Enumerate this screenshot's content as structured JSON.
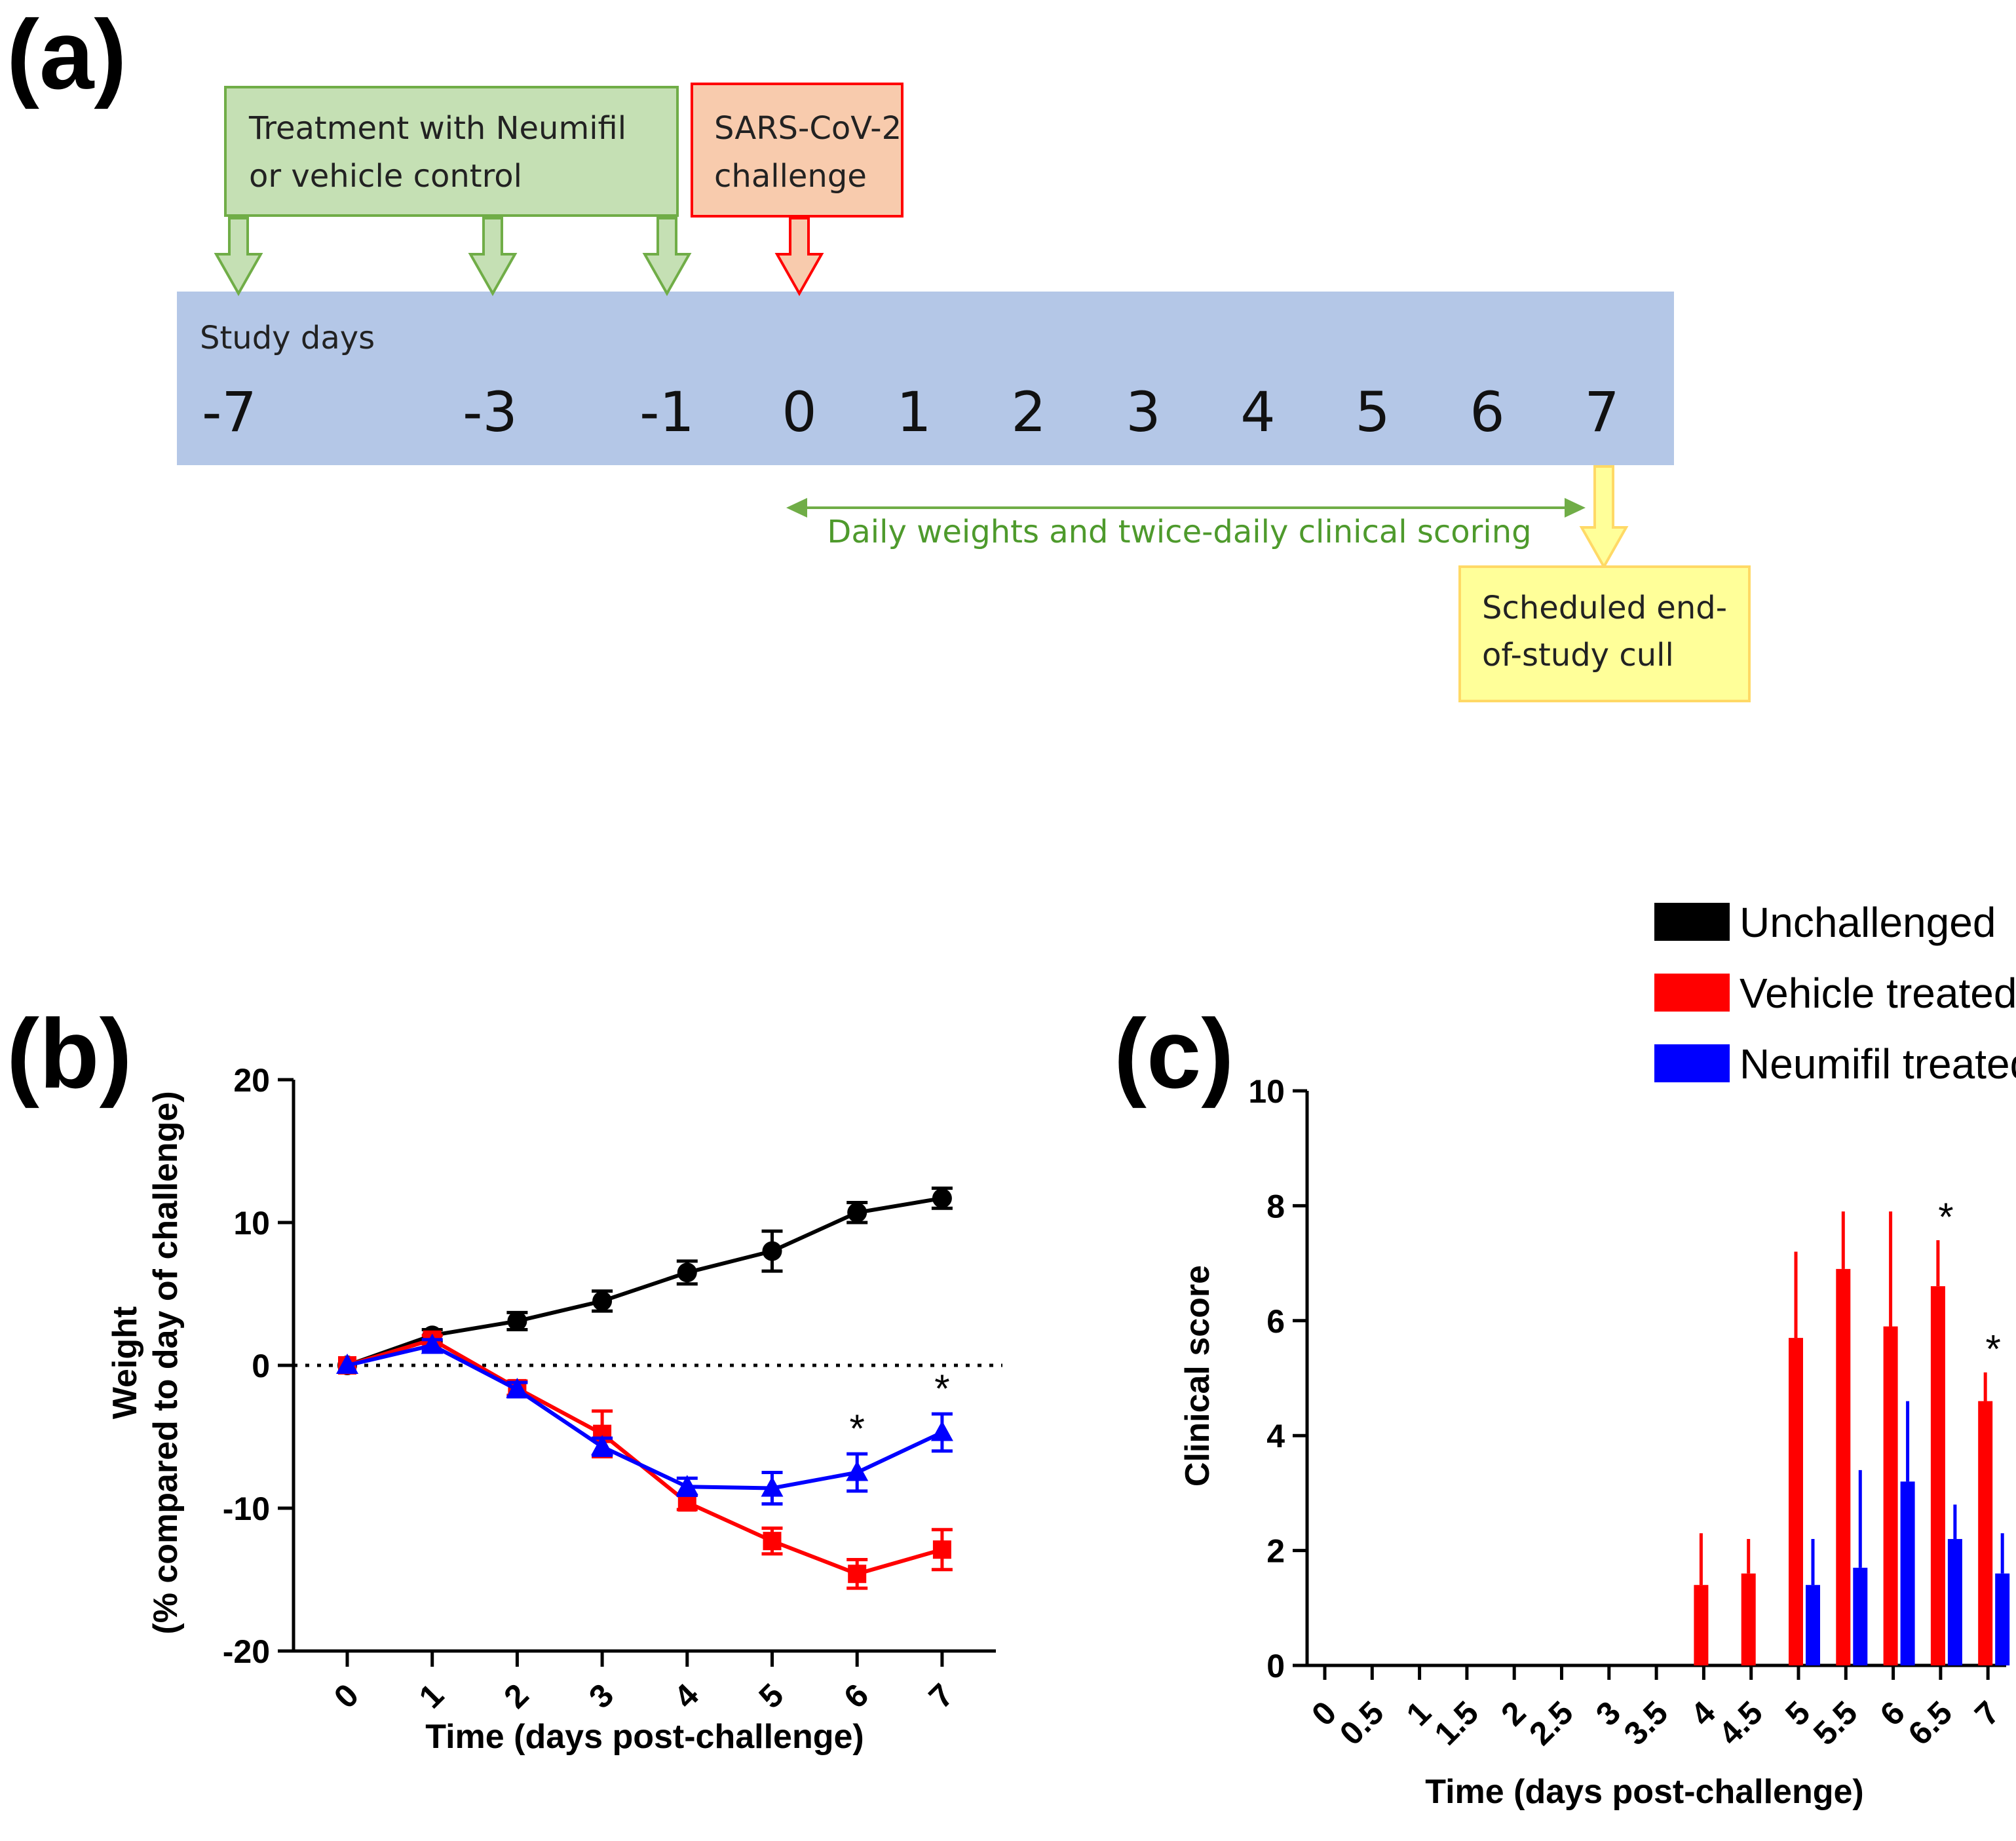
{
  "panel_a": {
    "label": "(a)",
    "treatment_box": [
      "Treatment with Neumifil",
      "or vehicle control"
    ],
    "challenge_box": [
      "SARS-CoV-2",
      "challenge"
    ],
    "study_days_label": "Study days",
    "days": [
      "-7",
      "-3",
      "-1",
      "0",
      "1",
      "2",
      "3",
      "4",
      "5",
      "6",
      "7"
    ],
    "monitoring_label": "Daily weights and twice-daily clinical scoring",
    "cull_box": [
      "Scheduled end-",
      "of-study cull"
    ],
    "colors": {
      "timeline": "#b4c7e7",
      "treatment_fill": "#c5e0b4",
      "treatment_border": "#70ad47",
      "challenge_fill": "#f8cbad",
      "challenge_border": "#ff0000",
      "cull_fill": "#ffff99",
      "cull_border": "#ffd966"
    }
  },
  "legend": {
    "items": [
      {
        "label": "Unchallenged",
        "color": "#000000"
      },
      {
        "label": "Vehicle treated",
        "color": "#ff0000"
      },
      {
        "label": "Neumifil treated",
        "color": "#0000ff"
      }
    ]
  },
  "chart_data": [
    {
      "panel": "(b)",
      "type": "line",
      "xlabel": "Time (days post-challenge)",
      "ylabel": [
        "Weight",
        "(% compared to day of challenge)"
      ],
      "x": [
        0,
        1,
        2,
        3,
        4,
        5,
        6,
        7
      ],
      "ylim": [
        -20,
        20
      ],
      "yticks": [
        20,
        10,
        0,
        -10,
        -20
      ],
      "xticks": [
        "0",
        "1",
        "2",
        "3",
        "4",
        "5",
        "6",
        "7"
      ],
      "reference_line_y": 0,
      "series": [
        {
          "name": "Unchallenged",
          "color": "#000000",
          "marker": "circle",
          "values": [
            0,
            2.1,
            3.1,
            4.5,
            6.5,
            8.0,
            10.7,
            11.7
          ],
          "errors": [
            0,
            0.4,
            0.6,
            0.7,
            0.8,
            1.4,
            0.7,
            0.7
          ]
        },
        {
          "name": "Vehicle treated",
          "color": "#ff0000",
          "marker": "square",
          "values": [
            0,
            1.8,
            -1.6,
            -4.8,
            -9.6,
            -12.3,
            -14.6,
            -12.9
          ],
          "errors": [
            0,
            0.3,
            0.5,
            1.6,
            0.5,
            0.9,
            1.0,
            1.4
          ]
        },
        {
          "name": "Neumifil treated",
          "color": "#0000ff",
          "marker": "triangle",
          "values": [
            0,
            1.4,
            -1.7,
            -5.7,
            -8.5,
            -8.6,
            -7.5,
            -4.7
          ],
          "errors": [
            0,
            0.4,
            0.5,
            0.6,
            0.6,
            1.1,
            1.3,
            1.3
          ]
        }
      ],
      "annotations": [
        {
          "x": 6,
          "text": "*"
        },
        {
          "x": 7,
          "text": "*"
        }
      ]
    },
    {
      "panel": "(c)",
      "type": "bar",
      "xlabel": "Time (days post-challenge)",
      "ylabel": "Clinical score",
      "categories": [
        "0",
        "0.5",
        "1",
        "1.5",
        "2",
        "2.5",
        "3",
        "3.5",
        "4",
        "4.5",
        "5",
        "5.5",
        "6",
        "6.5",
        "7"
      ],
      "ylim": [
        0,
        10
      ],
      "yticks": [
        10,
        8,
        6,
        4,
        2,
        0
      ],
      "series": [
        {
          "name": "Unchallenged",
          "color": "#000000",
          "values": [
            0,
            0,
            0,
            0,
            0,
            0,
            0,
            0,
            0,
            0,
            0,
            0,
            0,
            0,
            0
          ],
          "errors": [
            0,
            0,
            0,
            0,
            0,
            0,
            0,
            0,
            0,
            0,
            0,
            0,
            0,
            0,
            0
          ]
        },
        {
          "name": "Vehicle treated",
          "color": "#ff0000",
          "values": [
            0,
            0,
            0,
            0,
            0,
            0,
            0,
            0,
            1.4,
            1.6,
            5.7,
            6.9,
            5.9,
            6.6,
            4.6
          ],
          "errors": [
            0,
            0,
            0,
            0,
            0,
            0,
            0,
            0,
            0.9,
            0.6,
            1.5,
            1.0,
            2.0,
            0.8,
            0.5
          ]
        },
        {
          "name": "Neumifil treated",
          "color": "#0000ff",
          "values": [
            0,
            0,
            0,
            0,
            0,
            0,
            0,
            0,
            0,
            0,
            1.4,
            1.7,
            3.2,
            2.2,
            1.6
          ],
          "errors": [
            0,
            0,
            0,
            0,
            0,
            0,
            0,
            0,
            0,
            0,
            0.8,
            1.7,
            1.4,
            0.6,
            0.7
          ]
        }
      ],
      "annotations": [
        {
          "category": "6.5",
          "text": "*"
        },
        {
          "category": "7",
          "text": "*"
        }
      ]
    }
  ]
}
